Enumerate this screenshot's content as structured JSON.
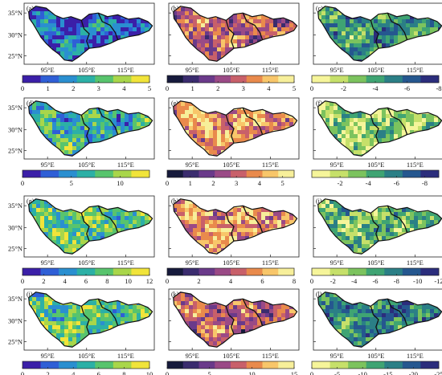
{
  "chart_data": [
    {
      "type": "heatmap",
      "panel_label": "(a)",
      "colormap": "blue-yellow",
      "colorbar_ticks": [
        "0",
        "1",
        "2",
        "3",
        "4",
        "5"
      ],
      "colorbar_range": [
        0,
        5
      ],
      "x_ticks": [
        "95°E",
        "105°E",
        "115°E"
      ],
      "y_ticks": [
        "25°N",
        "30°N",
        "35°N"
      ],
      "mean_level": 0.25
    },
    {
      "type": "heatmap",
      "panel_label": "(b)",
      "colormap": "dark-plasma",
      "colorbar_ticks": [
        "0",
        "1",
        "2",
        "3",
        "4",
        "5"
      ],
      "colorbar_range": [
        0,
        5
      ],
      "x_ticks": [
        "95°E",
        "105°E",
        "115°E"
      ],
      "y_ticks": [
        "25°N",
        "30°N",
        "35°N"
      ],
      "mean_level": 0.55
    },
    {
      "type": "heatmap",
      "panel_label": "(c)",
      "colormap": "yellow-green-blue",
      "colorbar_ticks": [
        "0",
        "-2",
        "-4",
        "-6",
        "-8"
      ],
      "colorbar_range": [
        0,
        -8
      ],
      "x_ticks": [
        "95°E",
        "105°E",
        "115°E"
      ],
      "y_ticks": [
        "25°N",
        "30°N",
        "35°N"
      ],
      "mean_level": 0.55
    },
    {
      "type": "heatmap",
      "panel_label": "(d)",
      "colormap": "blue-yellow",
      "colorbar_ticks": [
        "0",
        "5",
        "10"
      ],
      "colorbar_range": [
        0,
        13
      ],
      "x_ticks": [
        "95°E",
        "105°E",
        "115°E"
      ],
      "y_ticks": [
        "25°N",
        "30°N",
        "35°N"
      ],
      "mean_level": 0.5
    },
    {
      "type": "heatmap",
      "panel_label": "(e)",
      "colormap": "dark-plasma",
      "colorbar_ticks": [
        "0",
        "1",
        "2",
        "3",
        "4",
        "5"
      ],
      "colorbar_range": [
        0,
        5.5
      ],
      "x_ticks": [
        "95°E",
        "105°E",
        "115°E"
      ],
      "y_ticks": [
        "25°N",
        "30°N",
        "35°N"
      ],
      "mean_level": 0.72
    },
    {
      "type": "heatmap",
      "panel_label": "(f)",
      "colormap": "yellow-green-blue",
      "colorbar_ticks": [
        "-2",
        "-4",
        "-6",
        "-8"
      ],
      "colorbar_range": [
        0,
        -9
      ],
      "x_ticks": [
        "95°E",
        "105°E",
        "115°E"
      ],
      "y_ticks": [
        "25°N",
        "30°N",
        "35°N"
      ],
      "mean_level": 0.3
    },
    {
      "type": "heatmap",
      "panel_label": "(g)",
      "colormap": "blue-yellow",
      "colorbar_ticks": [
        "0",
        "2",
        "4",
        "6",
        "8",
        "10",
        "12"
      ],
      "colorbar_range": [
        0,
        12
      ],
      "x_ticks": [
        "95°E",
        "105°E",
        "115°E"
      ],
      "y_ticks": [
        "25°N",
        "30°N",
        "35°N"
      ],
      "mean_level": 0.62
    },
    {
      "type": "heatmap",
      "panel_label": "(h)",
      "colormap": "dark-plasma",
      "colorbar_ticks": [
        "0",
        "2",
        "4",
        "6",
        "8"
      ],
      "colorbar_range": [
        0,
        8
      ],
      "x_ticks": [
        "95°E",
        "105°E",
        "115°E"
      ],
      "y_ticks": [
        "25°N",
        "30°N",
        "35°N"
      ],
      "mean_level": 0.72
    },
    {
      "type": "heatmap",
      "panel_label": "(i)",
      "colormap": "yellow-green-blue",
      "colorbar_ticks": [
        "0",
        "-2",
        "-4",
        "-6",
        "-8",
        "-10",
        "-12"
      ],
      "colorbar_range": [
        0,
        -12
      ],
      "x_ticks": [
        "95°E",
        "105°E",
        "115°E"
      ],
      "y_ticks": [
        "25°N",
        "30°N",
        "35°N"
      ],
      "mean_level": 0.42
    },
    {
      "type": "heatmap",
      "panel_label": "(j)",
      "colormap": "blue-yellow",
      "colorbar_ticks": [
        "0",
        "2",
        "4",
        "6",
        "8",
        "10"
      ],
      "colorbar_range": [
        0,
        10
      ],
      "x_ticks": [
        "95°E",
        "105°E",
        "115°E"
      ],
      "y_ticks": [
        "25°N",
        "30°N",
        "35°N"
      ],
      "mean_level": 0.62
    },
    {
      "type": "heatmap",
      "panel_label": "(k)",
      "colormap": "dark-plasma",
      "colorbar_ticks": [
        "0",
        "5",
        "10",
        "15"
      ],
      "colorbar_range": [
        0,
        15
      ],
      "x_ticks": [
        "95°E",
        "105°E",
        "115°E"
      ],
      "y_ticks": [
        "25°N",
        "30°N",
        "35°N"
      ],
      "mean_level": 0.55
    },
    {
      "type": "heatmap",
      "panel_label": "(l)",
      "colormap": "yellow-green-blue",
      "colorbar_ticks": [
        "0",
        "-5",
        "-10",
        "-15",
        "-20",
        "-25"
      ],
      "colorbar_range": [
        0,
        -25
      ],
      "x_ticks": [
        "95°E",
        "105°E",
        "115°E"
      ],
      "y_ticks": [
        "25°N",
        "30°N",
        "35°N"
      ],
      "mean_level": 0.62
    }
  ],
  "colormaps": {
    "blue-yellow": [
      "#3b1fa8",
      "#2f5fd6",
      "#2a8fd0",
      "#2cb0a6",
      "#58c46d",
      "#a9d64a",
      "#f1e43a"
    ],
    "dark-plasma": [
      "#161a3c",
      "#3a2c6e",
      "#6a3a8a",
      "#9a4a86",
      "#c8606a",
      "#e98a4c",
      "#f8c66a",
      "#f7ef9a"
    ],
    "yellow-green-blue": [
      "#f6f59a",
      "#c6e06a",
      "#7cc35e",
      "#3fa473",
      "#2b7f86",
      "#25578f",
      "#2b2d7c"
    ]
  }
}
